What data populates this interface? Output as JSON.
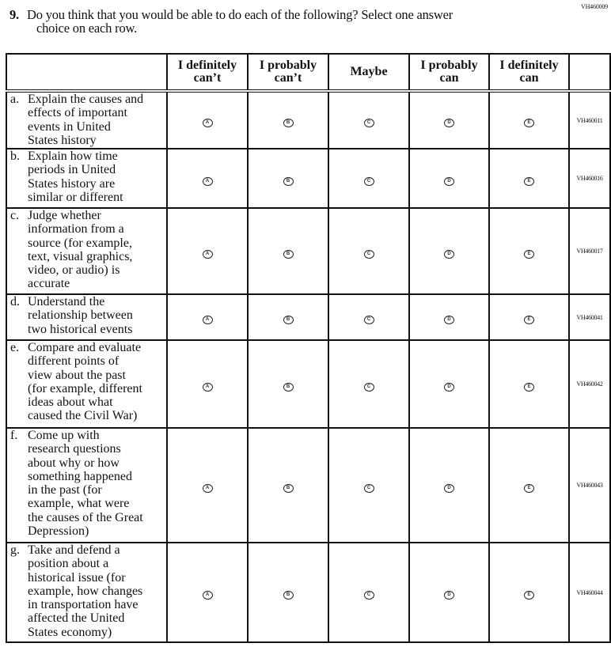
{
  "form_id": "VH460009",
  "question": {
    "number": "9.",
    "line1": "Do you think that you would be able to do each of the following? Select one answer",
    "line2": "choice on each row."
  },
  "columns": [
    [
      "I definitely",
      "can’t"
    ],
    [
      "I probably",
      "can’t"
    ],
    [
      "Maybe"
    ],
    [
      "I probably",
      "can"
    ],
    [
      "I definitely",
      "can"
    ]
  ],
  "bubble_letters": [
    "A",
    "B",
    "C",
    "D",
    "E"
  ],
  "rows": [
    {
      "letter": "a.",
      "lines": [
        "Explain the causes and",
        "effects of important",
        "events in United",
        "States history"
      ],
      "id": "VH460011"
    },
    {
      "letter": "b.",
      "lines": [
        "Explain how time",
        "periods in United",
        "States history are",
        "similar or different"
      ],
      "id": "VH460016"
    },
    {
      "letter": "c.",
      "lines": [
        "Judge whether",
        "information from a",
        "source (for example,",
        "text, visual graphics,",
        "video, or audio) is",
        "accurate"
      ],
      "id": "VH460017"
    },
    {
      "letter": "d.",
      "lines": [
        "Understand the",
        "relationship between",
        "two historical events"
      ],
      "id": "VH460041"
    },
    {
      "letter": "e.",
      "lines": [
        "Compare and evaluate",
        "different points of",
        "view about the past",
        "(for example, different",
        "ideas about what",
        "caused the Civil War)"
      ],
      "id": "VH460042"
    },
    {
      "letter": "f.",
      "lines": [
        "Come up with",
        "research questions",
        "about why or how",
        "something happened",
        "in the past (for",
        "example, what were",
        "the causes of the Great",
        "Depression)"
      ],
      "id": "VH460043"
    },
    {
      "letter": "g.",
      "lines": [
        "Take and defend a",
        "position about a",
        "historical issue (for",
        "example, how changes",
        "in transportation have",
        "affected the United",
        "States economy)"
      ],
      "id": "VH460044"
    }
  ]
}
